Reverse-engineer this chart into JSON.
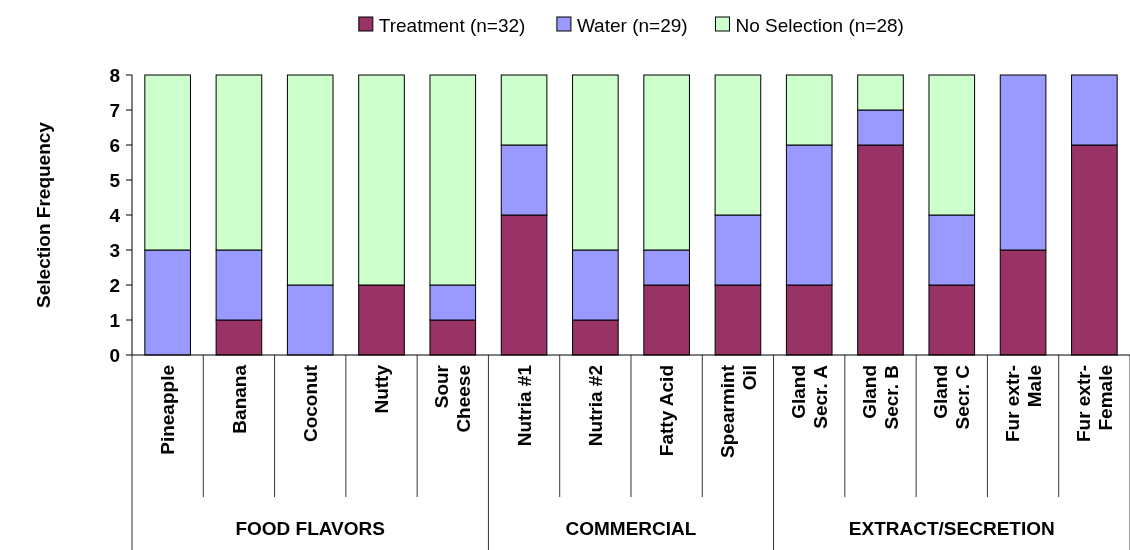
{
  "chart_data": {
    "type": "bar",
    "stacked": true,
    "ylabel": "Selection Frequency",
    "categories": [
      "Pineapple",
      "Banana",
      "Coconut",
      "Nutty",
      "Sour\nCheese",
      "Nutria #1",
      "Nutria #2",
      "Fatty Acid",
      "Spearmint\nOil",
      "Gland\nSecr. A",
      "Gland\nSecr. B",
      "Gland\nSecr. C",
      "Fur extr-\nMale",
      "Fur extr-\nFemale"
    ],
    "series": [
      {
        "name": "Treatment (n=32)",
        "color": "#993366",
        "values": [
          0,
          1,
          0,
          2,
          1,
          4,
          1,
          2,
          2,
          2,
          6,
          2,
          3,
          6
        ]
      },
      {
        "name": "Water (n=29)",
        "color": "#9999ff",
        "values": [
          3,
          2,
          2,
          0,
          1,
          2,
          2,
          1,
          2,
          4,
          1,
          2,
          5,
          2
        ]
      },
      {
        "name": "No Selection (n=28)",
        "color": "#ccffcc",
        "values": [
          5,
          5,
          6,
          6,
          6,
          2,
          5,
          5,
          4,
          2,
          1,
          4,
          0,
          0
        ]
      }
    ],
    "ylim": [
      0,
      8
    ],
    "yticks": [
      0,
      1,
      2,
      3,
      4,
      5,
      6,
      7,
      8
    ],
    "grid": false,
    "legend": "top",
    "annotations": [
      "FOOD FLAVORS",
      "COMMERCIAL",
      "EXTRACT/SECRETION"
    ]
  }
}
